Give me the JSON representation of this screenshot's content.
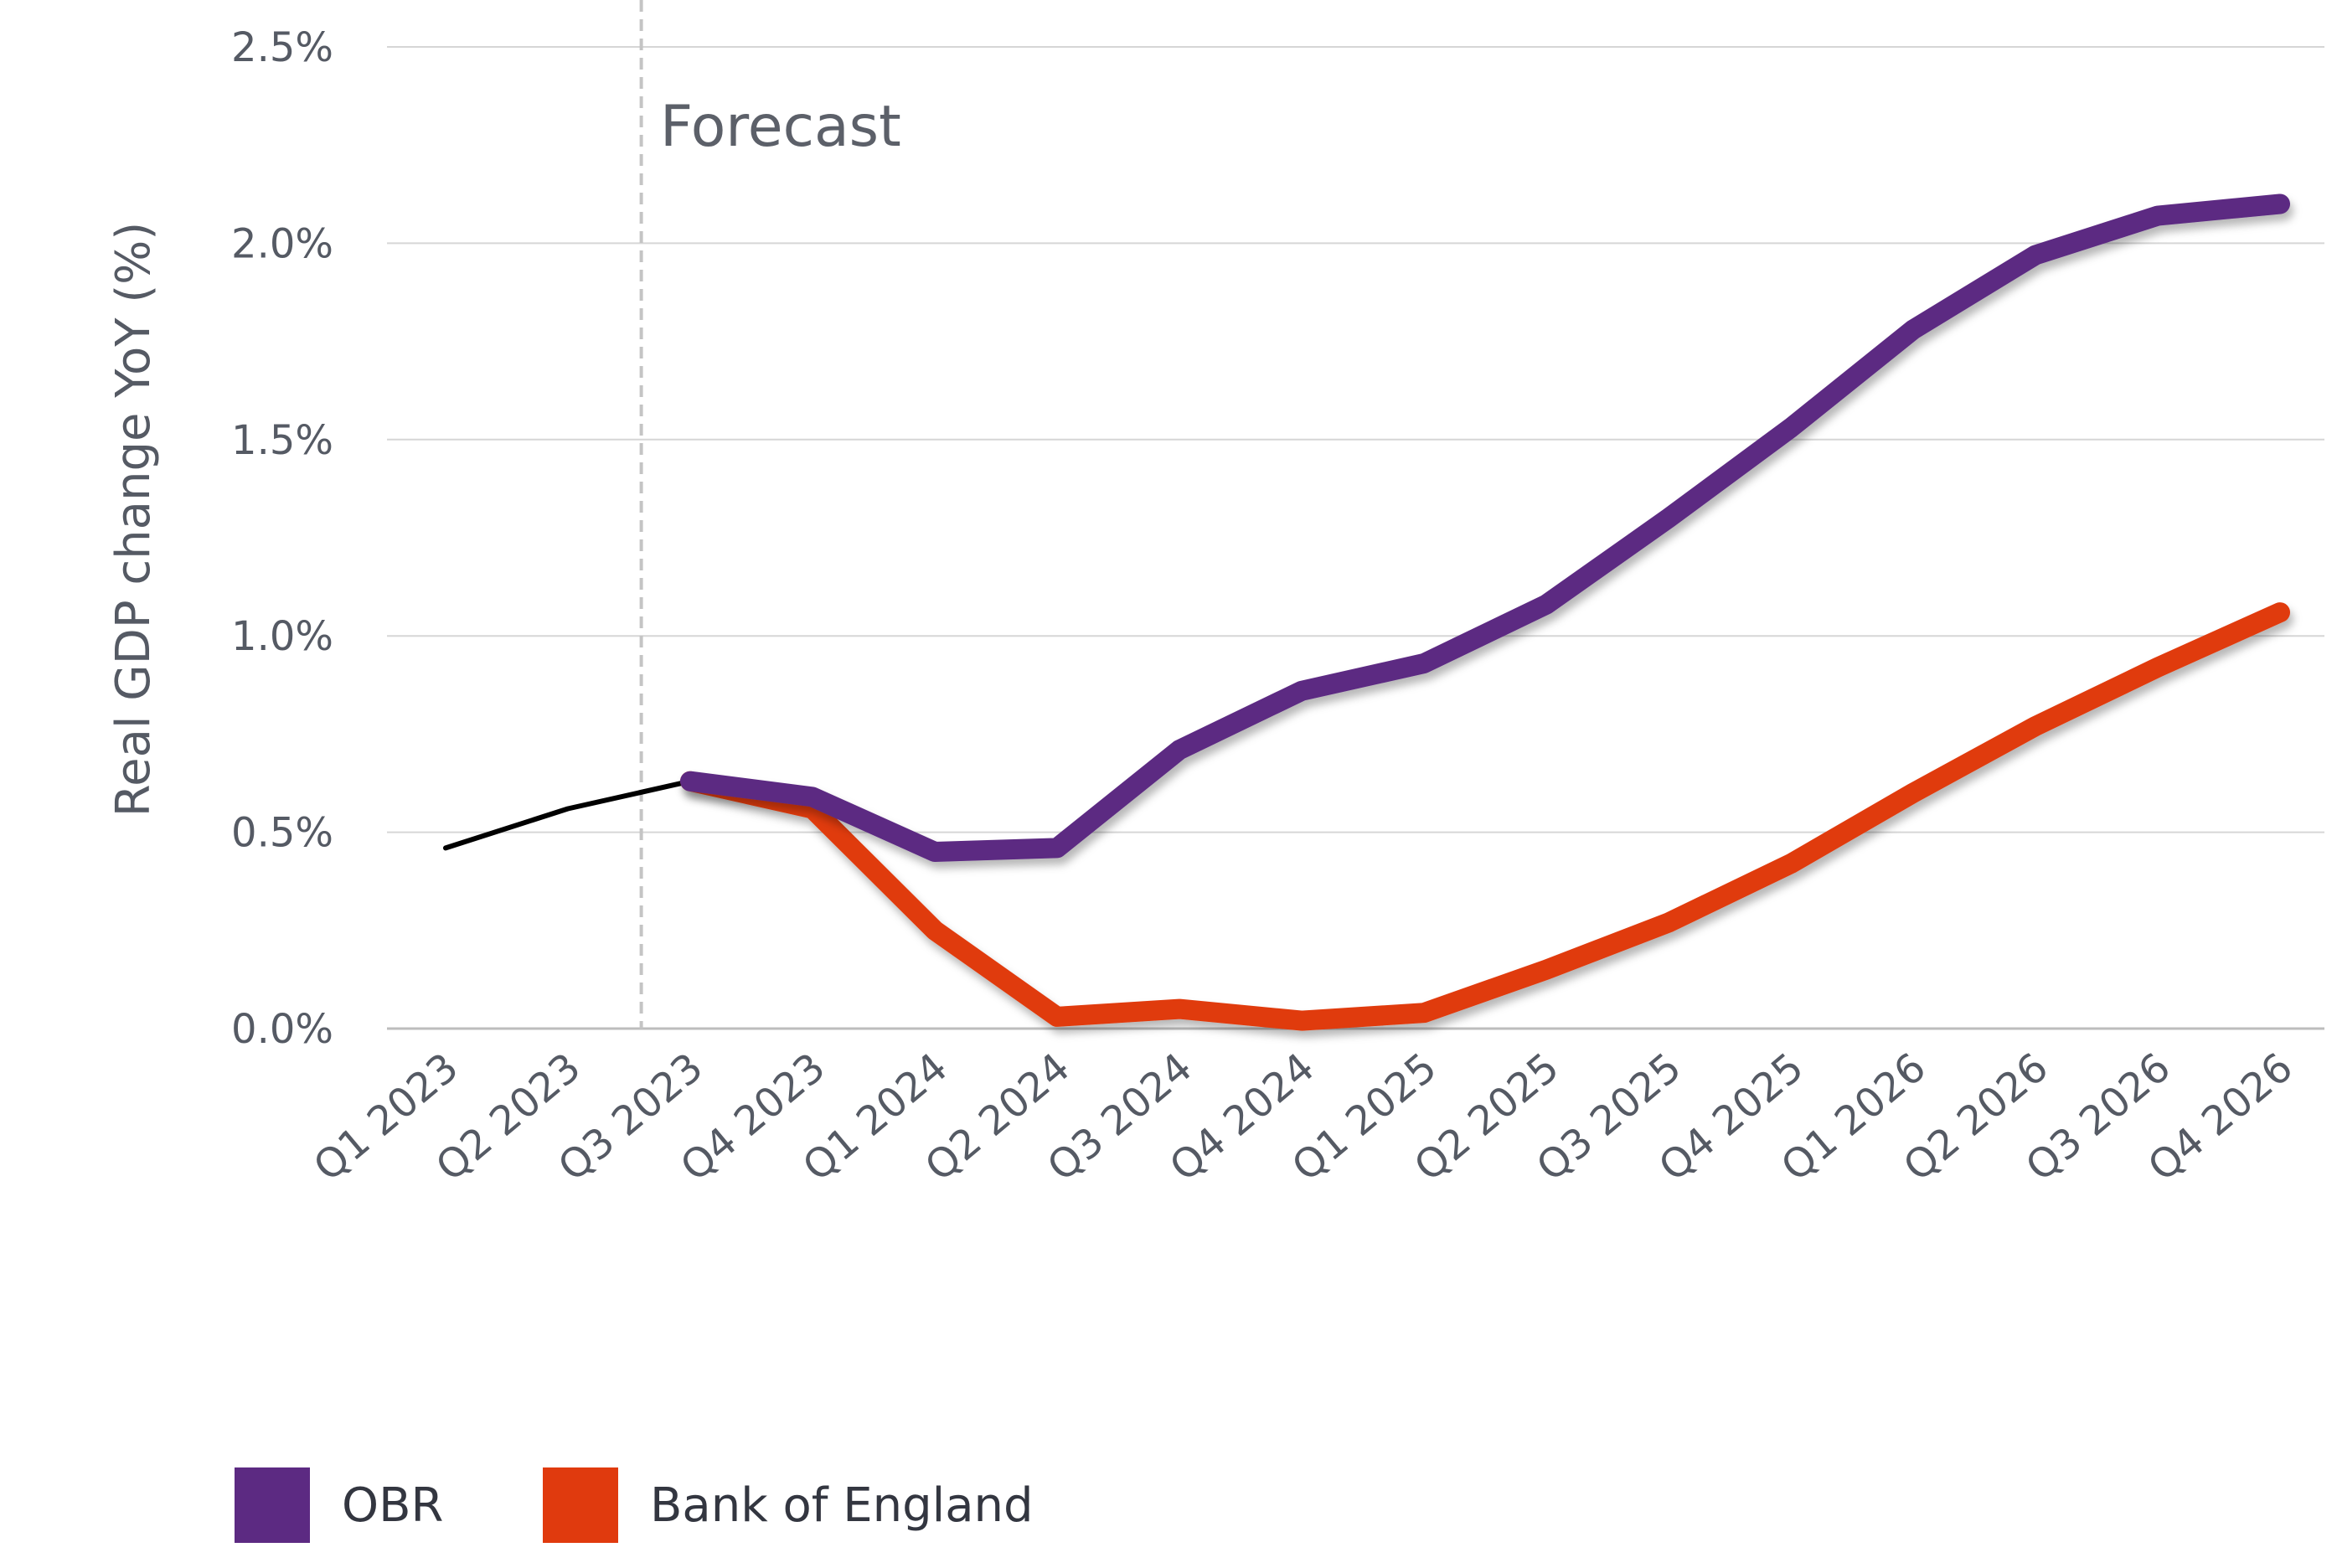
{
  "chart_data": {
    "type": "line",
    "ylabel": "Real GDP change YoY (%)",
    "ylim": [
      0,
      2.5
    ],
    "yticks": [
      "0.0%",
      "0.5%",
      "1.0%",
      "1.5%",
      "2.0%",
      "2.5%"
    ],
    "ytick_values": [
      0,
      0.5,
      1.0,
      1.5,
      2.0,
      2.5
    ],
    "grid": true,
    "categories": [
      "Q1 2023",
      "Q2 2023",
      "Q3 2023",
      "Q4 2023",
      "Q1 2024",
      "Q2 2024",
      "Q3 2024",
      "Q4 2024",
      "Q1 2025",
      "Q2 2025",
      "Q3 2025",
      "Q4 2025",
      "Q1 2026",
      "Q2 2026",
      "Q3 2026",
      "Q4 2026"
    ],
    "annotation": "Forecast",
    "forecast_start_after": "Q2 2023",
    "legend_position": "bottom-left",
    "series": [
      {
        "name": "",
        "color": "#000000",
        "role": "historical",
        "values": [
          0.46,
          0.56,
          0.63,
          null,
          null,
          null,
          null,
          null,
          null,
          null,
          null,
          null,
          null,
          null,
          null,
          null
        ]
      },
      {
        "name": "OBR",
        "color": "#5c2a82",
        "values": [
          null,
          null,
          0.63,
          0.59,
          0.45,
          0.46,
          0.71,
          0.86,
          0.93,
          1.08,
          1.3,
          1.53,
          1.78,
          1.97,
          2.07,
          2.1
        ]
      },
      {
        "name": "Bank of England",
        "color": "#e03a0e",
        "values": [
          null,
          null,
          0.63,
          0.56,
          0.25,
          0.03,
          0.05,
          0.02,
          0.04,
          0.15,
          0.27,
          0.42,
          0.6,
          0.77,
          0.92,
          1.06
        ]
      }
    ]
  }
}
